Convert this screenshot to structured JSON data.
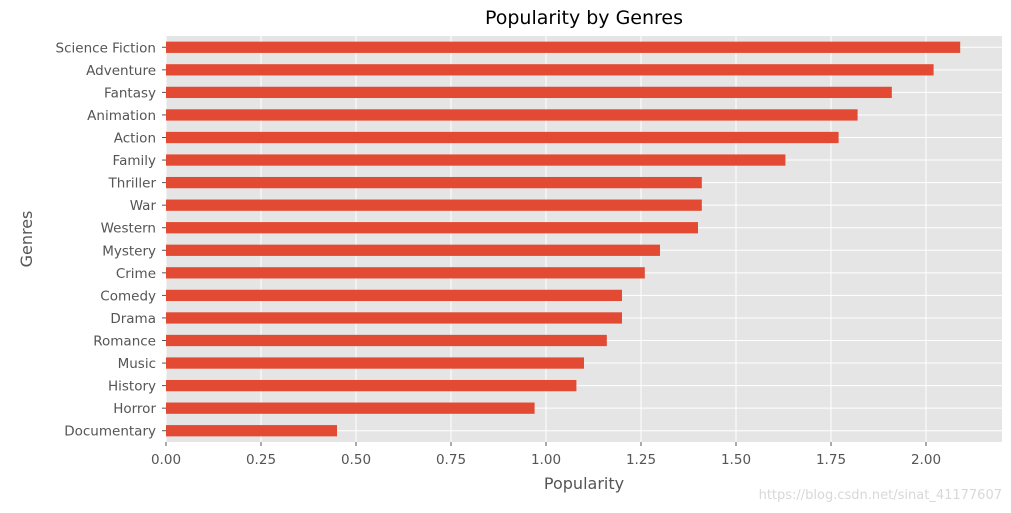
{
  "chart_data": {
    "type": "bar",
    "orientation": "horizontal",
    "title": "Popularity by Genres",
    "xlabel": "Popularity",
    "ylabel": "Genres",
    "xlim": [
      0,
      2.2
    ],
    "xticks": [
      0.0,
      0.25,
      0.5,
      0.75,
      1.0,
      1.25,
      1.5,
      1.75,
      2.0
    ],
    "xtick_labels": [
      "0.00",
      "0.25",
      "0.50",
      "0.75",
      "1.00",
      "1.25",
      "1.50",
      "1.75",
      "2.00"
    ],
    "grid": true,
    "legend": "none",
    "categories": [
      "Science Fiction",
      "Adventure",
      "Fantasy",
      "Animation",
      "Action",
      "Family",
      "Thriller",
      "War",
      "Western",
      "Mystery",
      "Crime",
      "Comedy",
      "Drama",
      "Romance",
      "Music",
      "History",
      "Horror",
      "Documentary"
    ],
    "values": [
      2.09,
      2.02,
      1.91,
      1.82,
      1.77,
      1.63,
      1.41,
      1.41,
      1.4,
      1.3,
      1.26,
      1.2,
      1.2,
      1.16,
      1.1,
      1.08,
      0.97,
      0.45
    ],
    "bar_color": "#E24A33",
    "background_color": "#E5E5E5",
    "grid_color": "#FFFFFF"
  },
  "watermark": "https://blog.csdn.net/sinat_41177607"
}
